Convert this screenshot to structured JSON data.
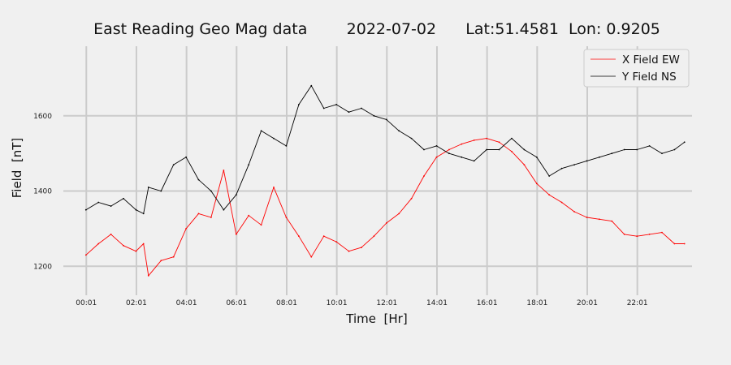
{
  "chart_data": {
    "type": "line",
    "title": "East Reading Geo Mag data        2022-07-02      Lat:51.4581  Lon: 0.9205",
    "xlabel": "Time  [Hr]",
    "ylabel": "Field  [nT]",
    "xlim": [
      -0.9,
      24.2
    ],
    "ylim": [
      1123,
      1785
    ],
    "grid": true,
    "legend_position": "top-right",
    "x_ticks": [
      {
        "value": 0.017,
        "label": "00:01"
      },
      {
        "value": 2.017,
        "label": "02:01"
      },
      {
        "value": 4.017,
        "label": "04:01"
      },
      {
        "value": 6.017,
        "label": "06:01"
      },
      {
        "value": 8.017,
        "label": "08:01"
      },
      {
        "value": 10.017,
        "label": "10:01"
      },
      {
        "value": 12.017,
        "label": "12:01"
      },
      {
        "value": 14.017,
        "label": "14:01"
      },
      {
        "value": 16.017,
        "label": "16:01"
      },
      {
        "value": 18.017,
        "label": "18:01"
      },
      {
        "value": 20.017,
        "label": "20:01"
      },
      {
        "value": 22.017,
        "label": "22:01"
      }
    ],
    "y_ticks": [
      {
        "value": 1200,
        "label": "1200"
      },
      {
        "value": 1400,
        "label": "1400"
      },
      {
        "value": 1600,
        "label": "1600"
      }
    ],
    "x": [
      0.0,
      0.5,
      1.0,
      1.5,
      2.0,
      2.3,
      2.5,
      3.0,
      3.5,
      4.0,
      4.5,
      5.0,
      5.5,
      6.0,
      6.5,
      7.0,
      7.5,
      8.0,
      8.5,
      9.0,
      9.5,
      10.0,
      10.5,
      11.0,
      11.5,
      12.0,
      12.5,
      13.0,
      13.5,
      14.0,
      14.5,
      15.0,
      15.5,
      16.0,
      16.5,
      17.0,
      17.5,
      18.0,
      18.5,
      19.0,
      19.5,
      20.0,
      20.5,
      21.0,
      21.5,
      22.0,
      22.5,
      23.0,
      23.5,
      23.9
    ],
    "series": [
      {
        "name": "X Field EW",
        "color": "#ff0000",
        "values": [
          1230,
          1260,
          1285,
          1255,
          1240,
          1260,
          1175,
          1215,
          1225,
          1300,
          1340,
          1330,
          1455,
          1285,
          1335,
          1310,
          1410,
          1330,
          1280,
          1225,
          1280,
          1265,
          1240,
          1250,
          1280,
          1315,
          1340,
          1380,
          1440,
          1490,
          1510,
          1525,
          1535,
          1540,
          1530,
          1505,
          1470,
          1420,
          1390,
          1370,
          1345,
          1330,
          1325,
          1320,
          1285,
          1280,
          1285,
          1290,
          1260,
          1260
        ]
      },
      {
        "name": "Y Field NS",
        "color": "#000000",
        "values": [
          1350,
          1370,
          1360,
          1380,
          1350,
          1340,
          1410,
          1400,
          1470,
          1490,
          1430,
          1400,
          1350,
          1390,
          1470,
          1560,
          1540,
          1520,
          1630,
          1680,
          1620,
          1630,
          1610,
          1620,
          1600,
          1590,
          1560,
          1540,
          1510,
          1520,
          1500,
          1490,
          1480,
          1510,
          1510,
          1540,
          1510,
          1490,
          1440,
          1460,
          1470,
          1480,
          1490,
          1500,
          1510,
          1510,
          1520,
          1500,
          1510,
          1530
        ]
      }
    ]
  }
}
